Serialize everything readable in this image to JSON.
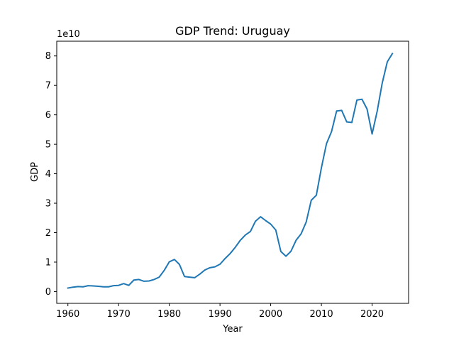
{
  "chart_data": {
    "type": "line",
    "title": "GDP Trend: Uruguay",
    "xlabel": "Year",
    "ylabel": "GDP",
    "y_offset_text": "1e10",
    "xlim": [
      1957.8,
      2027.2
    ],
    "ylim": [
      -4000000000.0,
      85000000000.0
    ],
    "x_ticks": [
      1960,
      1970,
      1980,
      1990,
      2000,
      2010,
      2020
    ],
    "y_ticks": [
      0,
      10000000000.0,
      20000000000.0,
      30000000000.0,
      40000000000.0,
      50000000000.0,
      60000000000.0,
      70000000000.0,
      80000000000.0
    ],
    "y_tick_labels": [
      "0",
      "1",
      "2",
      "3",
      "4",
      "5",
      "6",
      "7",
      "8"
    ],
    "grid": false,
    "series_color": "#1f77b4",
    "x": [
      1960,
      1961,
      1962,
      1963,
      1964,
      1965,
      1966,
      1967,
      1968,
      1969,
      1970,
      1971,
      1972,
      1973,
      1974,
      1975,
      1976,
      1977,
      1978,
      1979,
      1980,
      1981,
      1982,
      1983,
      1984,
      1985,
      1986,
      1987,
      1988,
      1989,
      1990,
      1991,
      1992,
      1993,
      1994,
      1995,
      1996,
      1997,
      1998,
      1999,
      2000,
      2001,
      2002,
      2003,
      2004,
      2005,
      2006,
      2007,
      2008,
      2009,
      2010,
      2011,
      2012,
      2013,
      2014,
      2015,
      2016,
      2017,
      2018,
      2019,
      2020,
      2021,
      2022,
      2023,
      2024
    ],
    "y": [
      1200000000.0,
      1500000000.0,
      1700000000.0,
      1600000000.0,
      2000000000.0,
      1900000000.0,
      1800000000.0,
      1600000000.0,
      1600000000.0,
      2000000000.0,
      2100000000.0,
      2700000000.0,
      2100000000.0,
      3900000000.0,
      4100000000.0,
      3500000000.0,
      3600000000.0,
      4100000000.0,
      4900000000.0,
      7200000000.0,
      10100000000.0,
      10900000000.0,
      9200000000.0,
      5100000000.0,
      4900000000.0,
      4700000000.0,
      5900000000.0,
      7300000000.0,
      8100000000.0,
      8400000000.0,
      9300000000.0,
      11200000000.0,
      12900000000.0,
      15000000000.0,
      17400000000.0,
      19200000000.0,
      20400000000.0,
      23900000000.0,
      25400000000.0,
      24100000000.0,
      22900000000.0,
      20900000000.0,
      13600000000.0,
      12000000000.0,
      13700000000.0,
      17400000000.0,
      19600000000.0,
      23600000000.0,
      31000000000.0,
      32700000000.0,
      42000000000.0,
      50200000000.0,
      54300000000.0,
      61300000000.0,
      61500000000.0,
      57600000000.0,
      57400000000.0,
      65000000000.0,
      65300000000.0,
      62000000000.0,
      53500000000.0,
      61200000000.0,
      70800000000.0,
      78000000000.0,
      80800000000.0
    ]
  }
}
